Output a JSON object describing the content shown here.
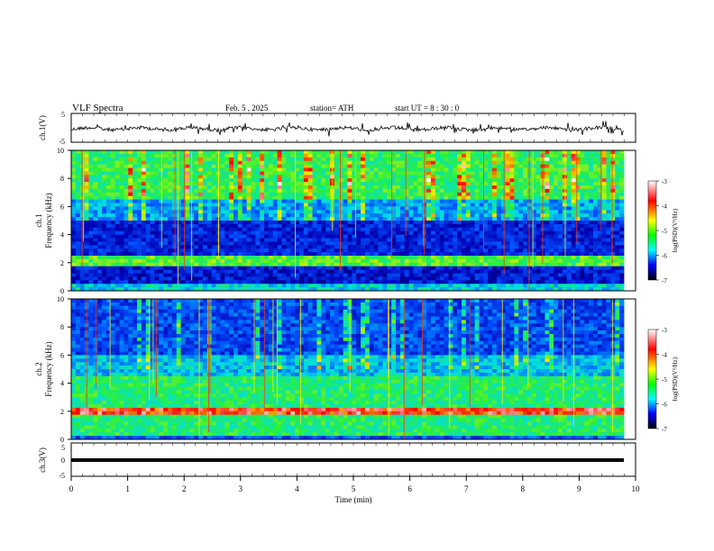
{
  "header": {
    "title": "VLF  Spectra",
    "date": "Feb. 5  ,  2025",
    "station": "station= ATH",
    "start_ut": "start  UT  =    8  : 30 : 0"
  },
  "colors": {
    "trace": "#000000",
    "cbar_stops": [
      "#ffffff",
      "#ff0000",
      "#ffff00",
      "#00ff00",
      "#00ffff",
      "#0000ff",
      "#000000"
    ]
  },
  "chart_data": [
    {
      "type": "line",
      "panel": "ch1-waveform",
      "ylabel": "ch.1(V)",
      "ylim": [
        -5,
        5
      ],
      "yticks": [
        "5",
        "-5"
      ],
      "series": [
        {
          "x": [
            0,
            2,
            4,
            6,
            8,
            9.8
          ],
          "values": [
            0,
            0,
            0,
            0,
            0,
            0
          ]
        }
      ]
    },
    {
      "type": "heatmap",
      "panel": "ch1-spectrogram",
      "ylabel_line1": "ch.1",
      "ylabel_line2": "Frequency  (kHz)",
      "ylim": [
        0,
        10
      ],
      "yticks": [
        "0",
        "2",
        "4",
        "6",
        "8",
        "10"
      ],
      "colorbar": {
        "label": "log(PSD)(V²/Hz)",
        "ticks": [
          "-3",
          "-4",
          "-5",
          "-6",
          "-7"
        ],
        "range": [
          -7,
          -3
        ]
      }
    },
    {
      "type": "heatmap",
      "panel": "ch2-spectrogram",
      "ylabel_line1": "ch.2",
      "ylabel_line2": "Frequency  (kHz)",
      "ylim": [
        0,
        10
      ],
      "yticks": [
        "0",
        "2",
        "4",
        "6",
        "8",
        "10"
      ],
      "colorbar": {
        "label": "log(PSD)(V²/Hz)",
        "ticks": [
          "-3",
          "-4",
          "-5",
          "-6",
          "-7"
        ],
        "range": [
          -7,
          -3
        ]
      }
    },
    {
      "type": "line",
      "panel": "ch3-waveform",
      "ylabel": "ch.3(V)",
      "ylim": [
        -5,
        5
      ],
      "yticks": [
        "5",
        "0",
        "-5"
      ],
      "series": [
        {
          "x": [
            0,
            9.8
          ],
          "values": [
            0,
            0
          ]
        }
      ]
    }
  ],
  "xaxis": {
    "label": "Time  (min)",
    "ticks": [
      "0",
      "1",
      "2",
      "3",
      "4",
      "5",
      "6",
      "7",
      "8",
      "9",
      "10"
    ],
    "xlim": [
      0,
      10
    ]
  }
}
